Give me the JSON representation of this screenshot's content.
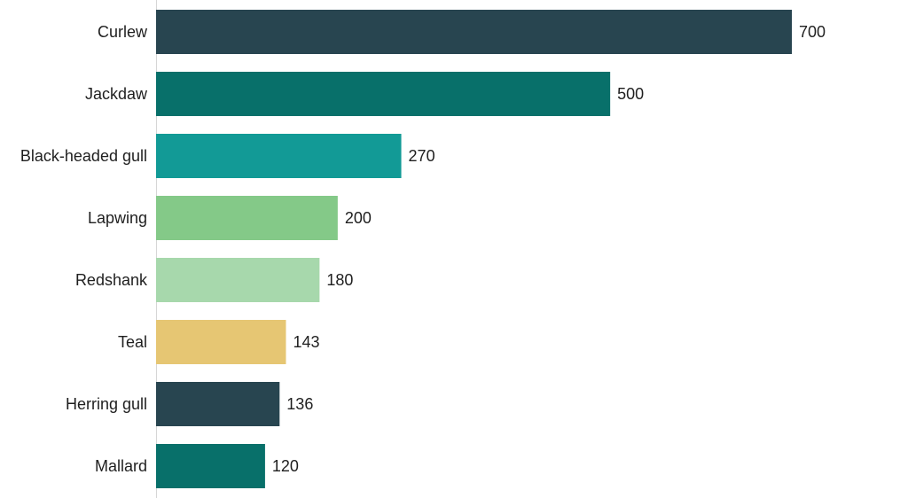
{
  "chart_data": {
    "type": "bar",
    "orientation": "horizontal",
    "categories": [
      "Curlew",
      "Jackdaw",
      "Black-headed gull",
      "Lapwing",
      "Redshank",
      "Teal",
      "Herring gull",
      "Mallard"
    ],
    "values": [
      700,
      500,
      270,
      200,
      180,
      143,
      136,
      120
    ],
    "colors": [
      "#284550",
      "#08706A",
      "#129A96",
      "#84C988",
      "#A7D8AC",
      "#E6C673",
      "#284550",
      "#08706A"
    ],
    "xlim": [
      0,
      700
    ],
    "grid": false,
    "data_labels": true,
    "title": "",
    "xlabel": "",
    "ylabel": ""
  }
}
